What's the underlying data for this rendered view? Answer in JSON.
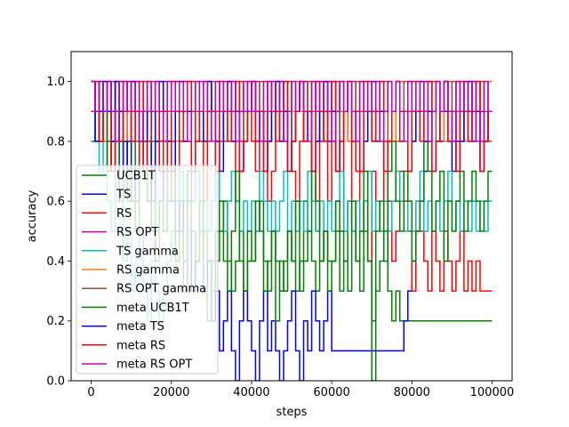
{
  "chart_data": {
    "type": "line",
    "xlabel": "steps",
    "ylabel": "accuracy",
    "xlim": [
      -5000,
      105000
    ],
    "ylim": [
      0,
      1.1
    ],
    "xticks": [
      0,
      20000,
      40000,
      60000,
      80000,
      100000
    ],
    "xtick_labels": [
      "0",
      "20000",
      "40000",
      "60000",
      "80000",
      "100000"
    ],
    "yticks": [
      0,
      0.2,
      0.4,
      0.6,
      0.8,
      1.0
    ],
    "ytick_labels": [
      "0.0",
      "0.2",
      "0.4",
      "0.6",
      "0.8",
      "1.0"
    ],
    "grid": false,
    "legend_position": "left-middle",
    "series": [
      {
        "name": "UCB1T",
        "color": "#008000",
        "step": 500,
        "x0": 0,
        "x1": 100000,
        "values": [
          0.8,
          0.9,
          1.0,
          0.9,
          0.8,
          0.7,
          0.9,
          1.0,
          0.8,
          0.6,
          0.7,
          0.8,
          0.9,
          0.7,
          0.6,
          0.8,
          0.5,
          0.6,
          0.7,
          0.8,
          0.6,
          0.4,
          0.5,
          0.6,
          0.7,
          0.5,
          0.4,
          0.6,
          0.5,
          0.4,
          0.3,
          0.4,
          0.5,
          0.6,
          0.4,
          0.3,
          0.4,
          0.5,
          0.3,
          0.4,
          0.4,
          0.5,
          0.6,
          0.4,
          0.3,
          0.5,
          0.4,
          0.3,
          0.4,
          0.5,
          0.4,
          0.3,
          0.4,
          0.6,
          0.5,
          0.4,
          0.3,
          0.4,
          0.5,
          0.4,
          0.4,
          0.5,
          0.3,
          0.4,
          0.6,
          0.5,
          0.4,
          0.3,
          0.5,
          0.4,
          0.2,
          0.3,
          0.4,
          0.5,
          0.3,
          0.2,
          0.3,
          0.2,
          0.2,
          0.2,
          0.2,
          0.2,
          0.2,
          0.2,
          0.2,
          0.2,
          0.2,
          0.2,
          0.2,
          0.2,
          0.2,
          0.2,
          0.2,
          0.2,
          0.2,
          0.2,
          0.2,
          0.2,
          0.2,
          0.2
        ]
      },
      {
        "name": "TS",
        "color": "#0000ff",
        "step": 500,
        "x0": 0,
        "x1": 100000,
        "values": [
          1.0,
          0.9,
          0.8,
          0.9,
          1.0,
          0.8,
          0.7,
          0.9,
          0.8,
          0.9,
          0.7,
          0.6,
          0.8,
          0.9,
          0.7,
          0.6,
          0.8,
          0.7,
          0.5,
          0.6,
          0.7,
          0.5,
          0.6,
          0.4,
          0.5,
          0.3,
          0.4,
          0.5,
          0.3,
          0.4,
          0.2,
          0.3,
          0.1,
          0.2,
          0.3,
          0.1,
          0.0,
          0.2,
          0.3,
          0.2,
          0.1,
          0.0,
          0.2,
          0.3,
          0.1,
          0.2,
          0.1,
          0.0,
          0.1,
          0.2,
          0.3,
          0.1,
          0.0,
          0.2,
          0.1,
          0.3,
          0.2,
          0.1,
          0.2,
          0.3,
          0.1,
          0.1,
          0.1,
          0.1,
          0.1,
          0.1,
          0.1,
          0.1,
          0.1,
          0.1,
          0.1,
          0.1,
          0.1,
          0.1,
          0.1,
          0.1,
          0.1,
          0.1,
          0.2,
          0.3,
          0.4,
          0.5,
          0.6,
          0.7,
          0.8,
          0.9,
          1.0,
          0.8,
          0.9,
          1.0,
          0.7,
          0.8,
          0.9,
          1.0,
          0.8,
          0.9,
          1.0,
          0.9,
          0.8,
          0.9
        ]
      },
      {
        "name": "RS",
        "color": "#ff0000",
        "step": 500,
        "x0": 0,
        "x1": 100000,
        "values": [
          0.9,
          1.0,
          0.8,
          0.9,
          0.7,
          1.0,
          0.9,
          0.8,
          0.9,
          1.0,
          0.8,
          0.9,
          0.7,
          0.8,
          1.0,
          0.9,
          0.8,
          0.7,
          0.9,
          1.0,
          0.8,
          0.6,
          0.9,
          0.8,
          1.0,
          0.7,
          0.9,
          0.8,
          0.6,
          1.0,
          0.9,
          0.7,
          0.8,
          0.9,
          1.0,
          0.8,
          0.6,
          0.7,
          0.9,
          1.0,
          0.8,
          0.7,
          0.9,
          0.8,
          0.6,
          0.7,
          0.9,
          1.0,
          0.8,
          0.9,
          0.7,
          0.6,
          0.8,
          1.0,
          0.9,
          0.7,
          0.5,
          0.8,
          0.9,
          0.6,
          0.8,
          0.7,
          0.9,
          0.5,
          0.6,
          0.8,
          0.7,
          0.5,
          0.6,
          0.4,
          0.7,
          0.6,
          0.5,
          0.8,
          0.6,
          0.4,
          0.5,
          0.7,
          0.6,
          0.5,
          0.3,
          0.6,
          0.5,
          0.4,
          0.3,
          0.5,
          0.4,
          0.3,
          0.5,
          0.4,
          0.3,
          0.4,
          0.5,
          0.3,
          0.4,
          0.3,
          0.4,
          0.3,
          0.3,
          0.3
        ]
      },
      {
        "name": "RS OPT",
        "color": "#bf00bf",
        "step": 500,
        "x0": 0,
        "x1": 100000,
        "values": [
          1.0,
          0.9,
          1.0,
          0.8,
          1.0,
          0.9,
          1.0,
          0.9,
          0.8,
          1.0,
          0.9,
          1.0,
          0.9,
          0.8,
          1.0,
          0.9,
          1.0,
          0.9,
          1.0,
          0.8,
          0.9,
          1.0,
          0.9,
          1.0,
          0.8,
          1.0,
          0.9,
          1.0,
          0.9,
          1.0,
          0.9,
          0.8,
          1.0,
          0.9,
          1.0,
          0.9,
          1.0,
          0.8,
          0.9,
          1.0,
          0.9,
          1.0,
          0.9,
          0.8,
          1.0,
          0.9,
          1.0,
          0.9,
          1.0,
          0.9,
          0.8,
          1.0,
          0.9,
          1.0,
          0.9,
          1.0,
          0.9,
          0.8,
          1.0,
          0.9,
          1.0,
          0.9,
          1.0,
          0.9,
          0.8,
          1.0,
          0.9,
          1.0,
          0.9,
          1.0,
          0.8,
          0.9,
          1.0,
          0.9,
          1.0,
          0.9,
          0.8,
          1.0,
          0.9,
          1.0,
          0.9,
          1.0,
          0.9,
          0.8,
          1.0,
          0.9,
          1.0,
          0.9,
          1.0,
          0.9,
          0.8,
          1.0,
          0.9,
          1.0,
          0.9,
          1.0,
          0.9,
          0.8,
          0.9,
          1.0
        ]
      },
      {
        "name": "TS gamma",
        "color": "#00bfbf",
        "step": 500,
        "x0": 0,
        "x1": 100000,
        "values": [
          0.9,
          0.8,
          0.7,
          0.8,
          0.6,
          0.5,
          0.7,
          0.6,
          0.4,
          0.5,
          0.3,
          0.4,
          0.5,
          0.3,
          0.2,
          0.4,
          0.3,
          0.2,
          0.3,
          0.4,
          0.5,
          0.6,
          0.7,
          0.6,
          0.5,
          0.6,
          0.7,
          0.5,
          0.6,
          0.5,
          0.6,
          0.7,
          0.6,
          0.5,
          0.6,
          0.7,
          0.6,
          0.5,
          0.6,
          0.5,
          0.6,
          0.5,
          0.7,
          0.6,
          0.5,
          0.6,
          0.5,
          0.6,
          0.7,
          0.5,
          0.6,
          0.5,
          0.6,
          0.5,
          0.7,
          0.6,
          0.5,
          0.6,
          0.5,
          0.6,
          0.5,
          0.6,
          0.7,
          0.5,
          0.6,
          0.5,
          0.6,
          0.5,
          0.6,
          0.7,
          0.5,
          0.6,
          0.5,
          0.6,
          0.5,
          0.6,
          0.7,
          0.6,
          0.5,
          0.6,
          0.5,
          0.6,
          0.7,
          0.5,
          0.6,
          0.5,
          0.6,
          0.5,
          0.6,
          0.7,
          0.5,
          0.6,
          0.5,
          0.6,
          0.5,
          0.6,
          0.5,
          0.6,
          0.5,
          0.6
        ]
      },
      {
        "name": "RS gamma",
        "color": "#ff7f0e",
        "step": 500,
        "x0": 0,
        "x1": 100000,
        "values": [
          1.0,
          0.9,
          1.0,
          0.8,
          0.9,
          1.0,
          0.9,
          1.0,
          0.8,
          0.9,
          1.0,
          0.9,
          0.8,
          1.0,
          0.9,
          1.0,
          0.9,
          0.8,
          0.9,
          1.0,
          0.9,
          0.8,
          1.0,
          0.9,
          1.0,
          0.9,
          1.0,
          0.8,
          0.9,
          1.0,
          0.9,
          1.0,
          0.9,
          0.8,
          0.9,
          1.0,
          0.9,
          1.0,
          0.8,
          0.9,
          1.0,
          0.9,
          0.8,
          0.9,
          1.0,
          0.9,
          1.0,
          0.8,
          0.9,
          1.0,
          0.9,
          1.0,
          0.9,
          0.8,
          1.0,
          0.9,
          1.0,
          0.9,
          0.8,
          1.0,
          0.9,
          1.0,
          0.9,
          1.0,
          0.8,
          0.9,
          1.0,
          0.9,
          1.0,
          0.9,
          0.8,
          0.9,
          1.0,
          0.9,
          1.0,
          0.9,
          0.8,
          1.0,
          0.9,
          1.0,
          0.9,
          1.0,
          0.9,
          0.8,
          1.0,
          0.9,
          1.0,
          0.9,
          0.8,
          1.0,
          0.9,
          1.0,
          0.9,
          0.8,
          0.9,
          1.0,
          0.9,
          1.0,
          0.9,
          1.0
        ]
      },
      {
        "name": "RS OPT gamma",
        "color": "#a0522d",
        "step": 500,
        "x0": 0,
        "x1": 100000,
        "values": [
          1.0,
          0.9,
          0.8,
          1.0,
          0.9,
          1.0,
          0.8,
          0.9,
          1.0,
          0.9,
          1.0,
          0.9,
          0.8,
          1.0,
          0.9,
          1.0,
          0.9,
          1.0,
          0.8,
          0.9,
          1.0,
          0.9,
          0.8,
          1.0,
          0.9,
          1.0,
          0.9,
          0.8,
          1.0,
          0.9,
          1.0,
          0.9,
          1.0,
          0.8,
          0.9,
          1.0,
          0.9,
          1.0,
          0.8,
          0.9,
          1.0,
          0.9,
          1.0,
          0.9,
          0.8,
          1.0,
          0.9,
          1.0,
          0.9,
          1.0,
          0.8,
          0.9,
          1.0,
          0.9,
          1.0,
          0.9,
          0.8,
          1.0,
          0.9,
          1.0,
          0.9,
          1.0,
          0.8,
          0.9,
          1.0,
          0.9,
          1.0,
          0.9,
          0.8,
          1.0,
          0.9,
          1.0,
          0.9,
          1.0,
          0.8,
          0.9,
          1.0,
          0.9,
          1.0,
          0.9,
          0.8,
          1.0,
          0.9,
          1.0,
          0.9,
          1.0,
          0.8,
          0.9,
          1.0,
          0.9,
          1.0,
          0.9,
          0.8,
          1.0,
          0.9,
          1.0,
          0.9,
          1.0,
          0.9,
          0.8
        ]
      },
      {
        "name": "meta UCB1T",
        "color": "#008000",
        "step": 500,
        "x0": 0,
        "x1": 100000,
        "values": [
          0.9,
          0.8,
          1.0,
          0.9,
          0.7,
          0.8,
          0.9,
          0.6,
          0.8,
          0.7,
          0.6,
          0.5,
          0.7,
          0.8,
          0.6,
          0.5,
          0.4,
          0.6,
          0.5,
          0.7,
          0.6,
          0.4,
          0.5,
          0.3,
          0.6,
          0.5,
          0.4,
          0.6,
          0.3,
          0.2,
          0.4,
          0.5,
          0.6,
          0.4,
          0.3,
          0.5,
          0.7,
          0.4,
          0.3,
          0.5,
          0.4,
          0.6,
          0.5,
          0.3,
          0.4,
          0.5,
          0.2,
          0.4,
          0.3,
          0.5,
          0.4,
          0.6,
          0.3,
          0.4,
          0.5,
          0.7,
          0.6,
          0.4,
          0.5,
          0.3,
          0.4,
          0.6,
          0.5,
          0.4,
          0.3,
          0.6,
          0.4,
          0.5,
          0.7,
          0.4,
          0.0,
          0.5,
          0.6,
          0.4,
          0.7,
          0.8,
          0.6,
          0.5,
          0.7,
          0.6,
          0.4,
          0.5,
          0.6,
          0.8,
          0.7,
          0.5,
          0.6,
          0.7,
          0.4,
          0.6,
          0.5,
          0.6,
          0.7,
          0.5,
          0.6,
          0.7,
          0.6,
          0.5,
          0.6,
          0.7
        ]
      },
      {
        "name": "meta TS",
        "color": "#0000ff",
        "step": 500,
        "x0": 0,
        "x1": 100000,
        "values": [
          1.0,
          0.8,
          0.9,
          1.0,
          0.9,
          0.8,
          1.0,
          0.9,
          0.7,
          0.8,
          1.0,
          0.9,
          0.8,
          0.9,
          0.7,
          0.9,
          0.8,
          1.0,
          0.9,
          0.8,
          0.7,
          0.9,
          1.0,
          0.8,
          0.9,
          0.7,
          0.8,
          0.9,
          0.8,
          1.0,
          0.9,
          0.8,
          0.7,
          0.9,
          1.0,
          0.8,
          0.9,
          0.7,
          0.8,
          0.9,
          1.0,
          0.8,
          0.9,
          0.7,
          0.8,
          0.9,
          1.0,
          0.8,
          0.9,
          0.7,
          0.8,
          0.9,
          1.0,
          0.8,
          0.9,
          0.7,
          0.8,
          0.9,
          1.0,
          0.8,
          0.9,
          0.7,
          0.8,
          0.9,
          1.0,
          0.8,
          0.9,
          0.7,
          0.8,
          0.9,
          1.0,
          0.8,
          0.9,
          0.7,
          0.8,
          0.9,
          1.0,
          0.8,
          0.9,
          0.7,
          0.8,
          0.9,
          1.0,
          0.8,
          0.9,
          0.7,
          0.8,
          0.9,
          1.0,
          0.8,
          0.9,
          0.7,
          0.8,
          0.9,
          1.0,
          0.8,
          0.9,
          0.7,
          0.8,
          0.9
        ]
      },
      {
        "name": "meta RS",
        "color": "#ff0000",
        "step": 500,
        "x0": 0,
        "x1": 100000,
        "values": [
          0.9,
          1.0,
          0.8,
          0.9,
          1.0,
          0.7,
          0.9,
          0.8,
          1.0,
          0.9,
          0.8,
          0.9,
          1.0,
          0.7,
          0.8,
          0.9,
          1.0,
          0.8,
          0.9,
          0.7,
          1.0,
          0.9,
          0.8,
          0.9,
          1.0,
          0.7,
          0.8,
          0.9,
          1.0,
          0.8,
          0.9,
          0.7,
          1.0,
          0.9,
          0.8,
          0.9,
          1.0,
          0.7,
          0.8,
          0.9,
          1.0,
          0.8,
          0.9,
          0.7,
          1.0,
          0.9,
          0.8,
          0.9,
          1.0,
          0.7,
          0.8,
          0.9,
          1.0,
          0.8,
          0.9,
          0.7,
          1.0,
          0.9,
          0.8,
          0.9,
          1.0,
          0.7,
          0.8,
          0.9,
          1.0,
          0.8,
          0.9,
          0.7,
          1.0,
          0.9,
          0.8,
          0.9,
          1.0,
          0.7,
          0.8,
          0.9,
          1.0,
          0.8,
          0.9,
          0.7,
          1.0,
          0.9,
          0.8,
          0.9,
          1.0,
          0.7,
          0.8,
          0.9,
          1.0,
          0.8,
          0.9,
          0.7,
          1.0,
          0.9,
          0.8,
          0.9,
          1.0,
          0.7,
          0.8,
          0.9
        ]
      },
      {
        "name": "meta RS OPT",
        "color": "#bf00bf",
        "step": 500,
        "x0": 0,
        "x1": 100000,
        "values": [
          1.0,
          0.9,
          1.0,
          0.9,
          1.0,
          0.9,
          0.8,
          1.0,
          0.9,
          1.0,
          0.9,
          1.0,
          0.8,
          0.9,
          1.0,
          0.9,
          1.0,
          0.9,
          0.8,
          1.0,
          0.9,
          1.0,
          0.9,
          1.0,
          0.8,
          0.9,
          1.0,
          0.9,
          1.0,
          0.9,
          0.8,
          1.0,
          0.9,
          1.0,
          0.9,
          1.0,
          0.8,
          0.9,
          1.0,
          0.9,
          1.0,
          0.9,
          0.8,
          1.0,
          0.9,
          1.0,
          0.9,
          1.0,
          0.8,
          0.9,
          1.0,
          0.9,
          1.0,
          0.9,
          0.8,
          1.0,
          0.9,
          1.0,
          0.9,
          1.0,
          0.8,
          0.9,
          1.0,
          0.9,
          1.0,
          0.9,
          0.8,
          1.0,
          0.9,
          1.0,
          0.9,
          1.0,
          0.8,
          0.9,
          1.0,
          0.9,
          1.0,
          0.9,
          0.8,
          1.0,
          0.9,
          1.0,
          0.9,
          1.0,
          0.8,
          0.9,
          1.0,
          0.9,
          1.0,
          0.9,
          0.8,
          1.0,
          0.9,
          1.0,
          0.9,
          1.0,
          0.8,
          0.9,
          1.0,
          0.9
        ]
      }
    ]
  }
}
